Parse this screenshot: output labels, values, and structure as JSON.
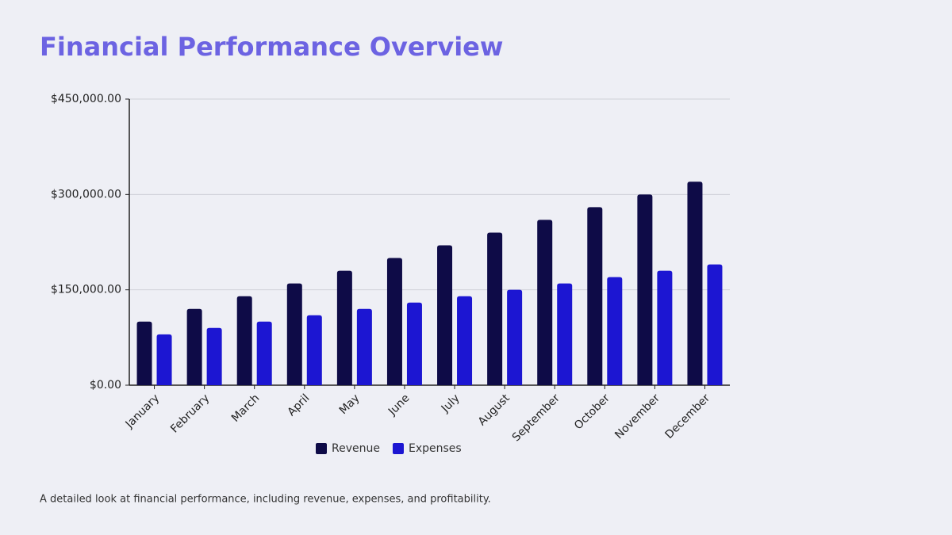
{
  "chart_data": {
    "type": "bar",
    "title": "Financial Performance Overview",
    "subtitle": "A detailed look at financial performance, including revenue, expenses, and profitability.",
    "categories": [
      "January",
      "February",
      "March",
      "April",
      "May",
      "June",
      "July",
      "August",
      "September",
      "October",
      "November",
      "December"
    ],
    "series": [
      {
        "name": "Revenue",
        "color": "#0e0b47",
        "values": [
          100000,
          120000,
          140000,
          160000,
          180000,
          200000,
          220000,
          240000,
          260000,
          280000,
          300000,
          320000
        ]
      },
      {
        "name": "Expenses",
        "color": "#1c16d2",
        "values": [
          80000,
          90000,
          100000,
          110000,
          120000,
          130000,
          140000,
          150000,
          160000,
          170000,
          180000,
          190000
        ]
      }
    ],
    "ylim": [
      0,
      450000
    ],
    "yticks": [
      {
        "value": 0,
        "label": "$0.00"
      },
      {
        "value": 150000,
        "label": "$150,000.00"
      },
      {
        "value": 300000,
        "label": "$300,000.00"
      },
      {
        "value": 450000,
        "label": "$450,000.00"
      }
    ],
    "grid": true,
    "legend": "bottom"
  }
}
